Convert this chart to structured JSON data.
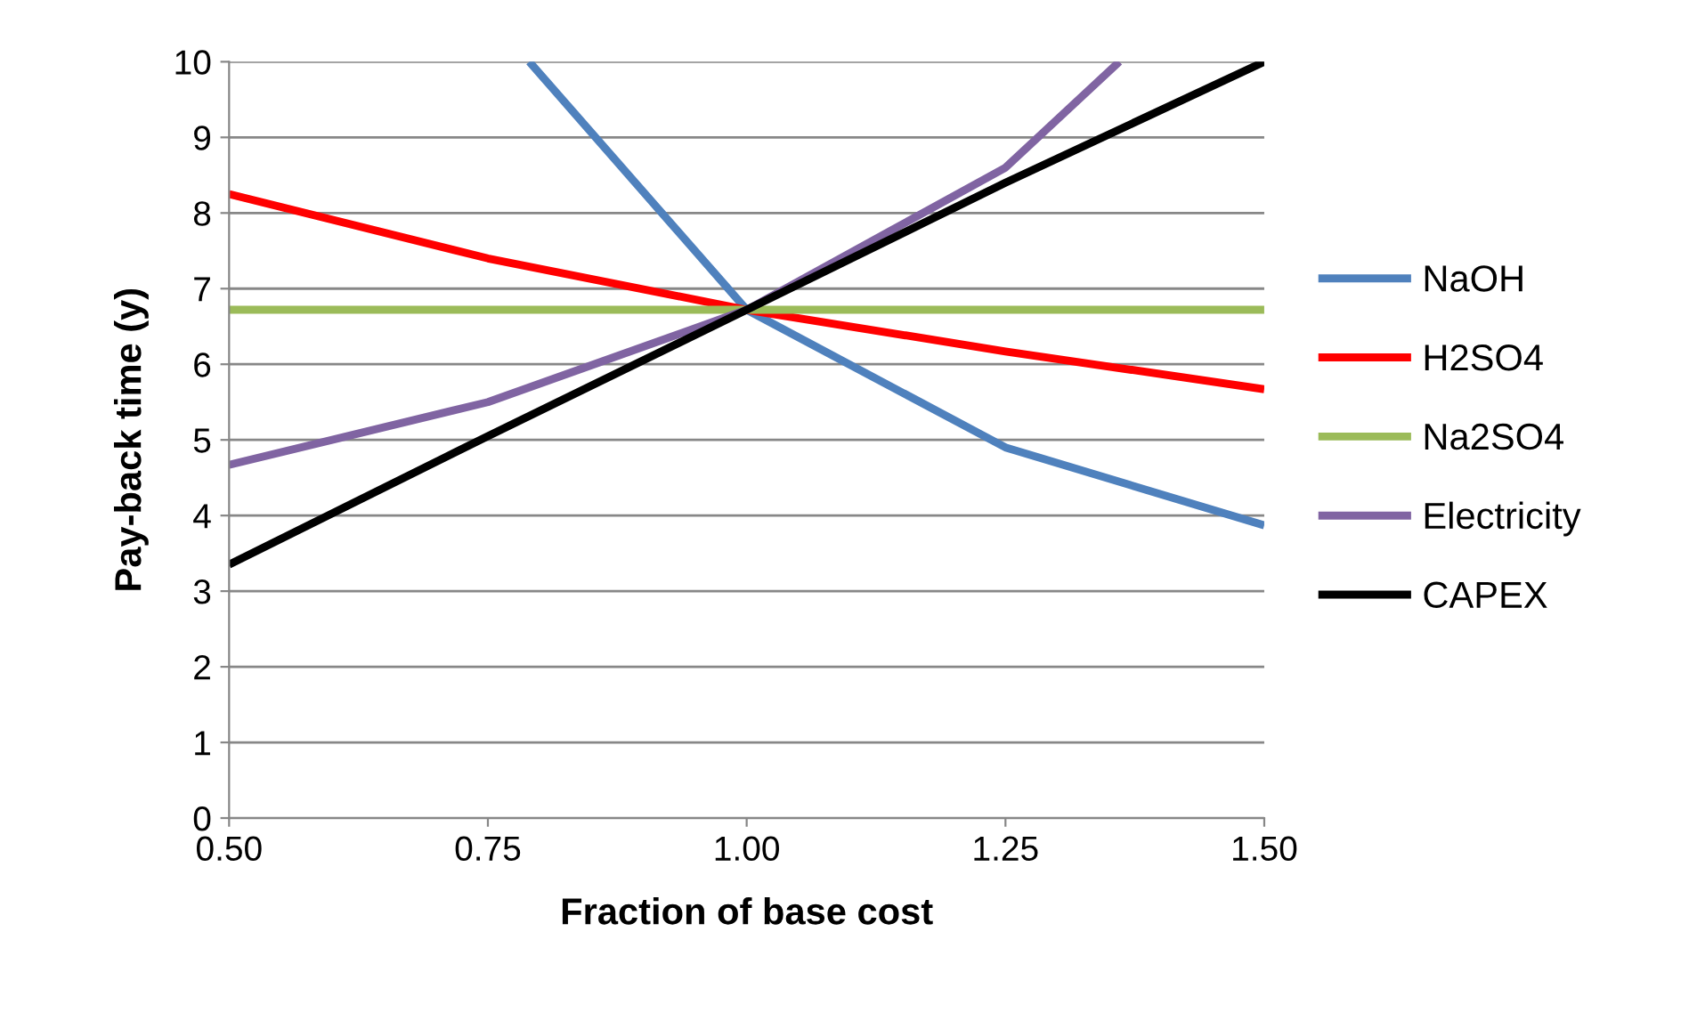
{
  "chart_data": {
    "type": "line",
    "xlabel": "Fraction of base cost",
    "ylabel": "Pay-back time (y)",
    "series": [
      {
        "name": "NaOH",
        "color": "#4f81bd",
        "x": [
          0.79,
          1.0,
          1.25,
          1.5
        ],
        "values": [
          10,
          6.72,
          4.9,
          3.87
        ]
      },
      {
        "name": "H2SO4",
        "color": "#ff0000",
        "x": [
          0.5,
          0.75,
          1.0,
          1.25,
          1.5
        ],
        "values": [
          8.25,
          7.4,
          6.72,
          6.17,
          5.67
        ]
      },
      {
        "name": "Na2SO4",
        "color": "#9bbb59",
        "x": [
          0.5,
          0.75,
          1.0,
          1.25,
          1.5
        ],
        "values": [
          6.72,
          6.72,
          6.72,
          6.72,
          6.72
        ]
      },
      {
        "name": "Electricity",
        "color": "#8064a2",
        "x": [
          0.5,
          0.75,
          1.0,
          1.25,
          1.36
        ],
        "values": [
          4.67,
          5.5,
          6.72,
          8.6,
          10
        ]
      },
      {
        "name": "CAPEX",
        "color": "#000000",
        "x": [
          0.5,
          0.75,
          1.0,
          1.25,
          1.5
        ],
        "values": [
          3.35,
          5.05,
          6.72,
          8.4,
          10
        ]
      }
    ],
    "xlim": [
      0.5,
      1.5
    ],
    "xticks": [
      {
        "value": 0.5,
        "label": "0.50"
      },
      {
        "value": 0.75,
        "label": "0.75"
      },
      {
        "value": 1.0,
        "label": "1.00"
      },
      {
        "value": 1.25,
        "label": "1.25"
      },
      {
        "value": 1.5,
        "label": "1.50"
      }
    ],
    "ylim": [
      0,
      10
    ],
    "yticks": [
      0,
      1,
      2,
      3,
      4,
      5,
      6,
      7,
      8,
      9,
      10
    ],
    "grid": "y",
    "legend": "right",
    "marker": "none",
    "line_style": "solid"
  }
}
